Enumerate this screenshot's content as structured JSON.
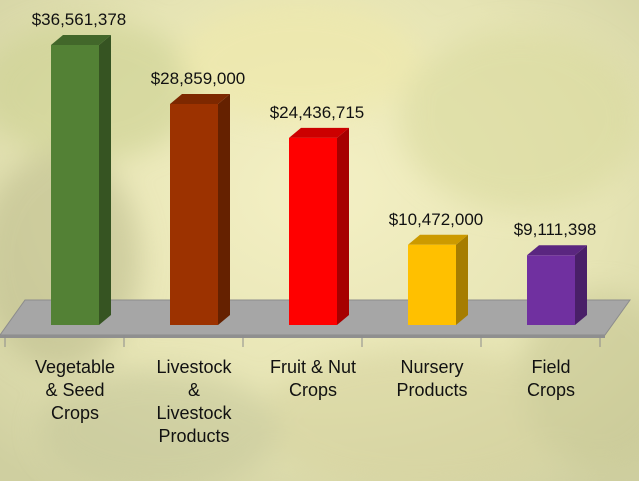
{
  "chart_data": {
    "type": "bar3d",
    "categories": [
      "Vegetable & Seed Crops",
      "Livestock & Livestock Products",
      "Fruit & Nut Crops",
      "Nursery Products",
      "Field Crops"
    ],
    "values": [
      36561378,
      28859000,
      24436715,
      10472000,
      9111398
    ],
    "value_labels": [
      "$36,561,378",
      "$28,859,000",
      "$24,436,715",
      "$10,472,000",
      "$9,111,398"
    ],
    "colors": [
      "#538135",
      "#9c3200",
      "#ff0000",
      "#ffc000",
      "#7030a0"
    ]
  }
}
